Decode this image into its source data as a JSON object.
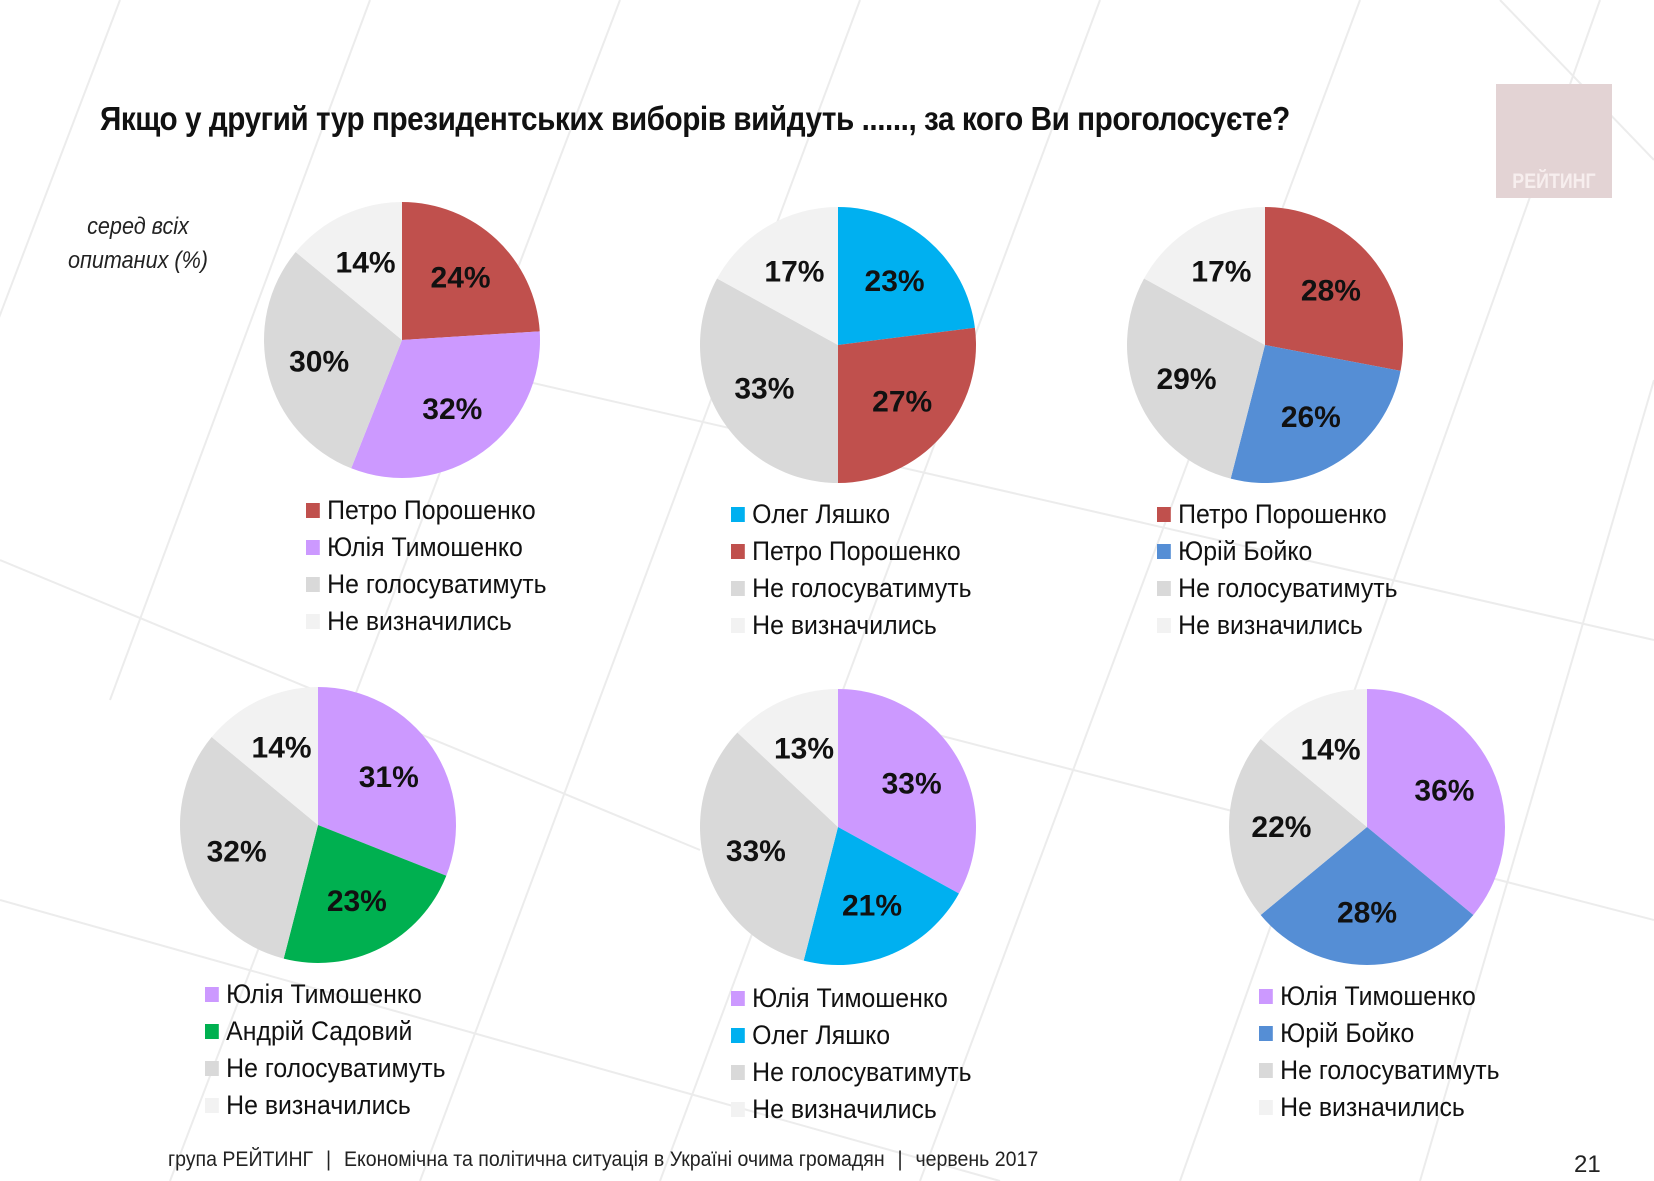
{
  "title": "Якщо у другий тур президентських виборів вийдуть ......, за кого Ви проголосуєте?",
  "subtitle_line1": "серед всіх",
  "subtitle_line2": "опитаних (%)",
  "logo_text": "РЕЙТИНГ",
  "footer": {
    "org": "група РЕЙТИНГ",
    "sep1": "|",
    "study": "Економічна та політична ситуація в Україні очима громадян",
    "sep2": "|",
    "date": "червень 2017"
  },
  "page_number": "21",
  "colors": {
    "poroshenko": "#c0504d",
    "tymoshenko": "#cc99ff",
    "lyashko": "#00b0f0",
    "boyko": "#558ed5",
    "sadovyi": "#00b050",
    "not_vote": "#d9d9d9",
    "undecided": "#f2f2f2"
  },
  "chart_data": [
    {
      "type": "pie",
      "labels": [
        "Петро Порошенко",
        "Юлія Тимошенко",
        "Не голосуватимуть",
        "Не визначились"
      ],
      "values": [
        24,
        32,
        30,
        14
      ],
      "value_labels": [
        "24%",
        "32%",
        "30%",
        "14%"
      ],
      "color_keys": [
        "poroshenko",
        "tymoshenko",
        "not_vote",
        "undecided"
      ],
      "legend_position": "bottom"
    },
    {
      "type": "pie",
      "labels": [
        "Олег Ляшко",
        "Петро Порошенко",
        "Не голосуватимуть",
        "Не визначились"
      ],
      "values": [
        23,
        27,
        33,
        17
      ],
      "value_labels": [
        "23%",
        "27%",
        "33%",
        "17%"
      ],
      "color_keys": [
        "lyashko",
        "poroshenko",
        "not_vote",
        "undecided"
      ],
      "legend_position": "bottom"
    },
    {
      "type": "pie",
      "labels": [
        "Петро Порошенко",
        "Юрій Бойко",
        "Не голосуватимуть",
        "Не визначились"
      ],
      "values": [
        28,
        26,
        29,
        17
      ],
      "value_labels": [
        "28%",
        "26%",
        "29%",
        "17%"
      ],
      "color_keys": [
        "poroshenko",
        "boyko",
        "not_vote",
        "undecided"
      ],
      "legend_position": "bottom"
    },
    {
      "type": "pie",
      "labels": [
        "Юлія Тимошенко",
        "Андрій Садовий",
        "Не голосуватимуть",
        "Не визначились"
      ],
      "values": [
        31,
        23,
        32,
        14
      ],
      "value_labels": [
        "31%",
        "23%",
        "32%",
        "14%"
      ],
      "color_keys": [
        "tymoshenko",
        "sadovyi",
        "not_vote",
        "undecided"
      ],
      "legend_position": "bottom"
    },
    {
      "type": "pie",
      "labels": [
        "Юлія Тимошенко",
        "Олег Ляшко",
        "Не голосуватимуть",
        "Не визначились"
      ],
      "values": [
        33,
        21,
        33,
        13
      ],
      "value_labels": [
        "33%",
        "21%",
        "33%",
        "13%"
      ],
      "color_keys": [
        "tymoshenko",
        "lyashko",
        "not_vote",
        "undecided"
      ],
      "legend_position": "bottom"
    },
    {
      "type": "pie",
      "labels": [
        "Юлія Тимошенко",
        "Юрій Бойко",
        "Не голосуватимуть",
        "Не визначились"
      ],
      "values": [
        36,
        28,
        22,
        14
      ],
      "value_labels": [
        "36%",
        "28%",
        "22%",
        "14%"
      ],
      "color_keys": [
        "tymoshenko",
        "boyko",
        "not_vote",
        "undecided"
      ],
      "legend_position": "bottom"
    }
  ]
}
